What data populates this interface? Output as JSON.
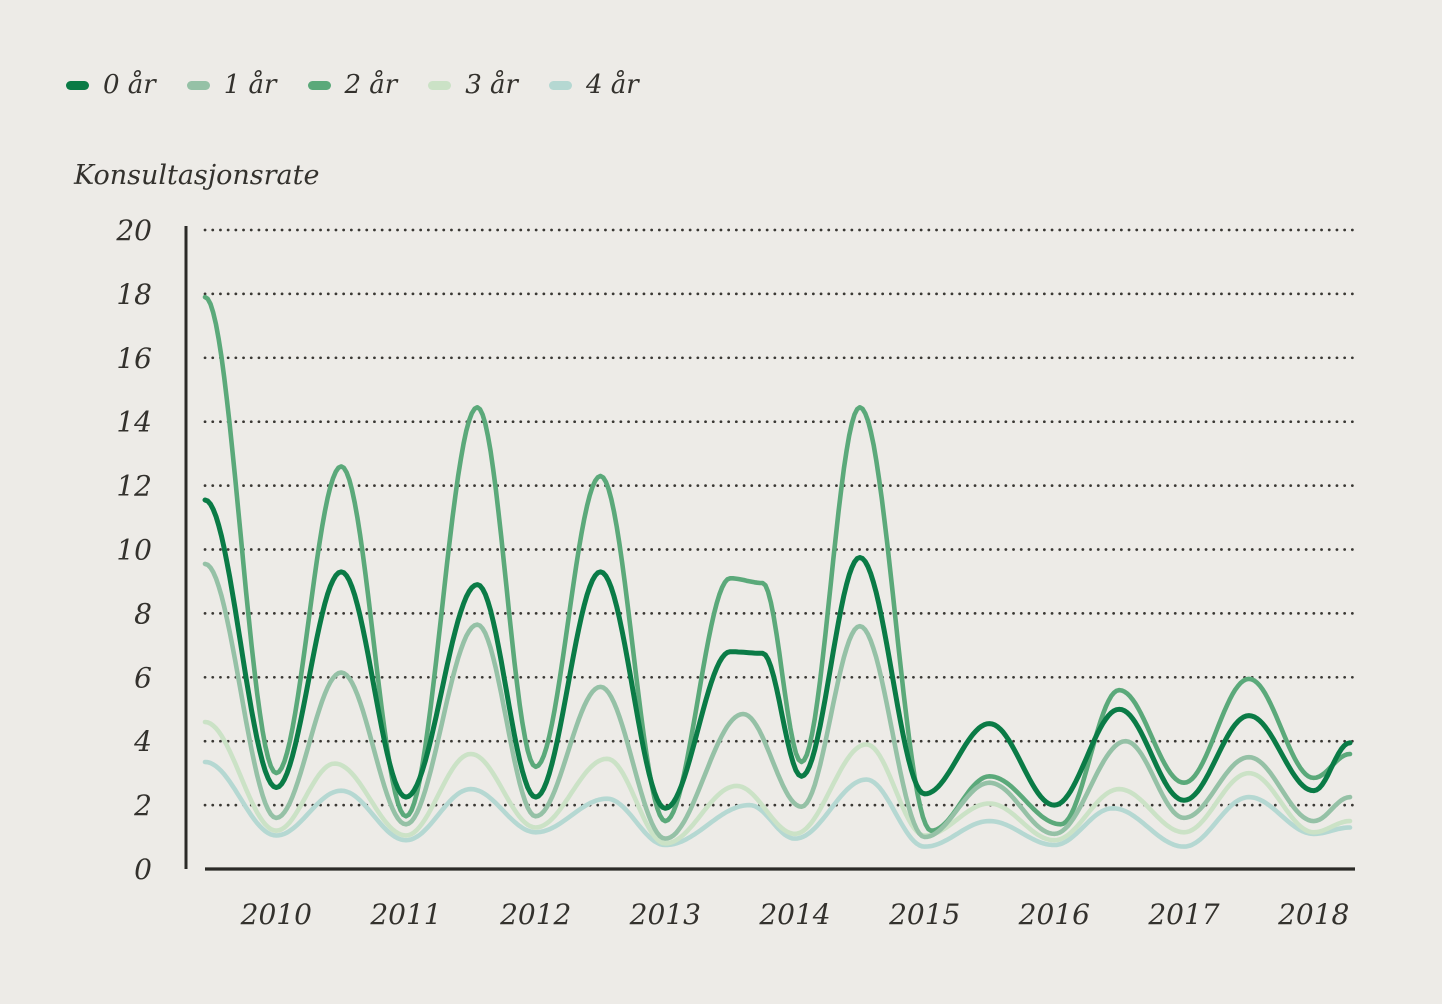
{
  "colors": {
    "background": "#edebe7",
    "text": "#33312d",
    "axis": "#2b2a27",
    "grid_dots": "#3a3834"
  },
  "chart_data": {
    "type": "line",
    "ylabel": "Konsultasjonsrate",
    "legend_position": "top-left",
    "grid": "horizontal-dotted",
    "x_range": [
      2009.45,
      2018.28
    ],
    "y_range": [
      0,
      20
    ],
    "y_ticks": [
      0,
      2,
      4,
      6,
      8,
      10,
      12,
      14,
      16,
      18,
      20
    ],
    "x_ticks": [
      {
        "value": 2010,
        "label": "2010"
      },
      {
        "value": 2011,
        "label": "2011"
      },
      {
        "value": 2012,
        "label": "2012"
      },
      {
        "value": 2013,
        "label": "2013"
      },
      {
        "value": 2014,
        "label": "2014"
      },
      {
        "value": 2015,
        "label": "2015"
      },
      {
        "value": 2016,
        "label": "2016"
      },
      {
        "value": 2017,
        "label": "2017"
      },
      {
        "value": 2018,
        "label": "2018"
      }
    ],
    "series": [
      {
        "name": "0 år",
        "color": "#0a7b46",
        "width": 5,
        "keypoints": [
          [
            2009.45,
            11.55
          ],
          [
            2010.0,
            2.55
          ],
          [
            2010.5,
            9.3
          ],
          [
            2011.0,
            2.25
          ],
          [
            2011.55,
            8.9
          ],
          [
            2012.0,
            2.25
          ],
          [
            2012.5,
            9.3
          ],
          [
            2013.0,
            1.9
          ],
          [
            2013.5,
            6.8
          ],
          [
            2013.75,
            6.75
          ],
          [
            2014.05,
            2.9
          ],
          [
            2014.5,
            9.75
          ],
          [
            2015.0,
            2.35
          ],
          [
            2015.5,
            4.55
          ],
          [
            2016.0,
            2.0
          ],
          [
            2016.5,
            5.0
          ],
          [
            2017.0,
            2.15
          ],
          [
            2017.5,
            4.8
          ],
          [
            2018.0,
            2.45
          ],
          [
            2018.28,
            3.95
          ]
        ]
      },
      {
        "name": "1 år",
        "color": "#95c1a6",
        "width": 4.6,
        "keypoints": [
          [
            2009.45,
            9.55
          ],
          [
            2010.0,
            1.6
          ],
          [
            2010.5,
            6.15
          ],
          [
            2011.0,
            1.4
          ],
          [
            2011.55,
            7.65
          ],
          [
            2012.0,
            1.65
          ],
          [
            2012.5,
            5.7
          ],
          [
            2013.0,
            0.95
          ],
          [
            2013.6,
            4.85
          ],
          [
            2014.05,
            1.95
          ],
          [
            2014.5,
            7.6
          ],
          [
            2015.0,
            1.0
          ],
          [
            2015.5,
            2.7
          ],
          [
            2016.0,
            1.1
          ],
          [
            2016.55,
            4.0
          ],
          [
            2017.0,
            1.6
          ],
          [
            2017.5,
            3.5
          ],
          [
            2018.0,
            1.5
          ],
          [
            2018.28,
            2.25
          ]
        ]
      },
      {
        "name": "2 år",
        "color": "#5ba97a",
        "width": 4.6,
        "keypoints": [
          [
            2009.45,
            17.9
          ],
          [
            2010.0,
            3.0
          ],
          [
            2010.5,
            12.6
          ],
          [
            2011.0,
            1.65
          ],
          [
            2011.55,
            14.45
          ],
          [
            2012.0,
            3.2
          ],
          [
            2012.5,
            12.3
          ],
          [
            2013.0,
            1.5
          ],
          [
            2013.5,
            9.1
          ],
          [
            2013.75,
            8.95
          ],
          [
            2014.05,
            3.35
          ],
          [
            2014.5,
            14.45
          ],
          [
            2015.05,
            1.2
          ],
          [
            2015.5,
            2.9
          ],
          [
            2016.05,
            1.4
          ],
          [
            2016.5,
            5.6
          ],
          [
            2017.0,
            2.7
          ],
          [
            2017.5,
            5.95
          ],
          [
            2018.0,
            2.85
          ],
          [
            2018.28,
            3.6
          ]
        ]
      },
      {
        "name": "3 år",
        "color": "#cbe2c6",
        "width": 4.6,
        "keypoints": [
          [
            2009.45,
            4.6
          ],
          [
            2010.0,
            1.2
          ],
          [
            2010.45,
            3.3
          ],
          [
            2011.0,
            1.05
          ],
          [
            2011.5,
            3.6
          ],
          [
            2012.0,
            1.3
          ],
          [
            2012.55,
            3.45
          ],
          [
            2013.0,
            0.8
          ],
          [
            2013.55,
            2.6
          ],
          [
            2014.0,
            1.1
          ],
          [
            2014.55,
            3.9
          ],
          [
            2015.0,
            1.05
          ],
          [
            2015.5,
            2.05
          ],
          [
            2016.0,
            0.9
          ],
          [
            2016.5,
            2.5
          ],
          [
            2017.0,
            1.15
          ],
          [
            2017.5,
            3.0
          ],
          [
            2018.0,
            1.15
          ],
          [
            2018.28,
            1.5
          ]
        ]
      },
      {
        "name": "4 år",
        "color": "#b5d8d2",
        "width": 4.6,
        "keypoints": [
          [
            2009.45,
            3.35
          ],
          [
            2010.0,
            1.05
          ],
          [
            2010.5,
            2.45
          ],
          [
            2011.0,
            0.9
          ],
          [
            2011.5,
            2.5
          ],
          [
            2012.0,
            1.15
          ],
          [
            2012.55,
            2.2
          ],
          [
            2013.0,
            0.75
          ],
          [
            2013.65,
            2.0
          ],
          [
            2014.0,
            0.95
          ],
          [
            2014.55,
            2.8
          ],
          [
            2015.0,
            0.7
          ],
          [
            2015.5,
            1.5
          ],
          [
            2016.0,
            0.75
          ],
          [
            2016.45,
            1.9
          ],
          [
            2017.0,
            0.7
          ],
          [
            2017.5,
            2.25
          ],
          [
            2018.0,
            1.1
          ],
          [
            2018.28,
            1.3
          ]
        ]
      }
    ]
  }
}
